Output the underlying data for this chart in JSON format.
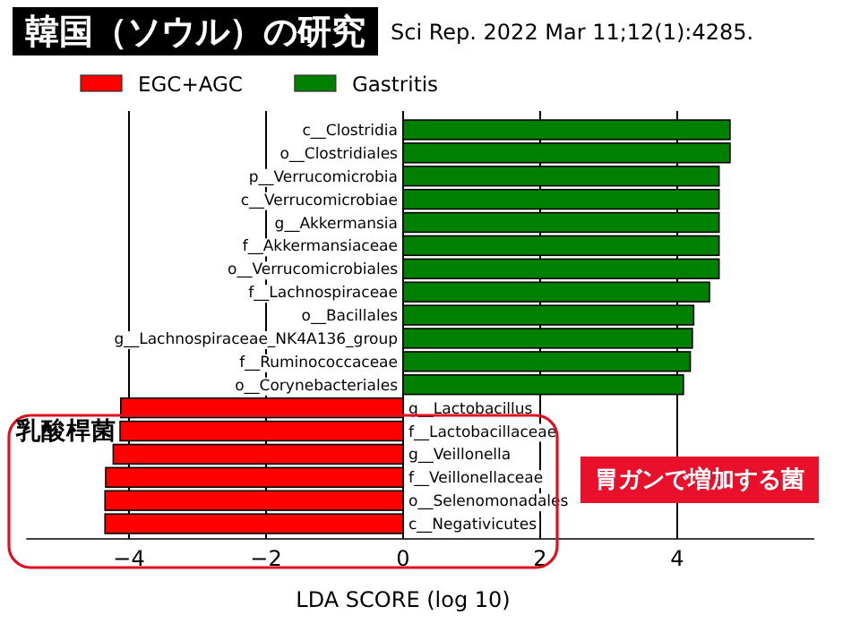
{
  "chart_data": {
    "type": "bar",
    "orientation": "horizontal",
    "title": "韓国（ソウル）の研究",
    "xlabel": "LDA SCORE (log 10)",
    "categories": [
      "c__Clostridia",
      "o__Clostridiales",
      "p__Verrucomicrobia",
      "c__Verrucomicrobiae",
      "g__Akkermansia",
      "f__Akkermansiaceae",
      "o__Verrucomicrobiales",
      "f__Lachnospiraceae",
      "o__Bacillales",
      "g__Lachnospiraceae_NK4A136_group",
      "f__Ruminococcaceae",
      "o__Corynebacteriales",
      "g__Lactobacillus",
      "f__Lactobacillaceae",
      "g__Veillonella",
      "f__Veillonellaceae",
      "o__Selenomonadales",
      "c__Negativicutes"
    ],
    "series": [
      {
        "name": "EGC+AGC",
        "color": "#ff0000",
        "values": [
          null,
          null,
          null,
          null,
          null,
          null,
          null,
          null,
          null,
          null,
          null,
          null,
          -4.12,
          -4.13,
          -4.23,
          -4.34,
          -4.35,
          -4.35
        ]
      },
      {
        "name": "Gastritis",
        "color": "#008000",
        "values": [
          4.77,
          4.77,
          4.61,
          4.61,
          4.61,
          4.61,
          4.61,
          4.47,
          4.24,
          4.22,
          4.19,
          4.09,
          null,
          null,
          null,
          null,
          null,
          null
        ]
      }
    ],
    "xlim": [
      -5.5,
      6
    ],
    "xticks": [
      {
        "value": -4,
        "label": "−4"
      },
      {
        "value": -2,
        "label": "−2"
      },
      0,
      2,
      4
    ],
    "grid": "x",
    "legend": "top",
    "annotations": [
      "Sci Rep. 2022 Mar 11;12(1):4285.",
      "乳酸桿菌",
      "胃ガンで増加する菌"
    ]
  }
}
